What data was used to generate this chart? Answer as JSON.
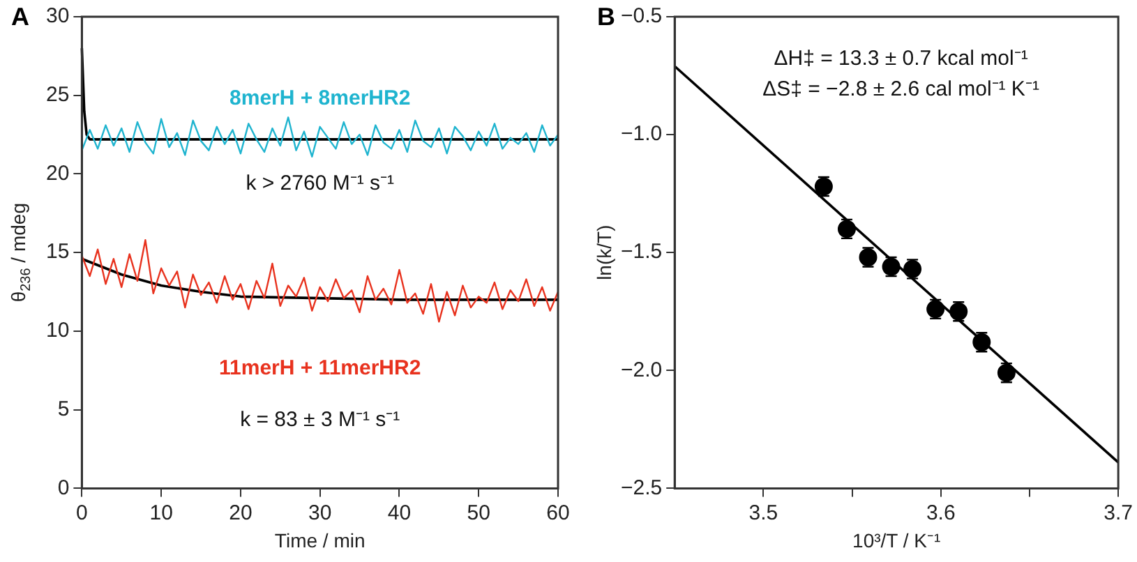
{
  "chart_data": [
    {
      "type": "line",
      "title": "A",
      "xlabel": "Time / min",
      "ylabel": "θ$_{236}$ / mdeg",
      "xlim": [
        0,
        60
      ],
      "xticks": [
        0,
        10,
        20,
        30,
        40,
        50,
        60
      ],
      "ylim": [
        0,
        30
      ],
      "yticks": [
        0,
        5,
        10,
        15,
        20,
        25,
        30
      ],
      "grid": false,
      "legend": false,
      "marker": "none",
      "annotations": [
        "k > 2760 M⁻¹ s⁻¹",
        "k = 83 ± 3 M⁻¹ s⁻¹"
      ],
      "series": [
        {
          "name": "8merH + 8merHR2",
          "color": "#1fb4cf",
          "x": [
            0,
            1,
            2,
            3,
            4,
            5,
            6,
            7,
            8,
            9,
            10,
            11,
            12,
            13,
            14,
            15,
            16,
            17,
            18,
            19,
            20,
            21,
            22,
            23,
            24,
            25,
            26,
            27,
            28,
            29,
            30,
            31,
            32,
            33,
            34,
            35,
            36,
            37,
            38,
            39,
            40,
            41,
            42,
            43,
            44,
            45,
            46,
            47,
            48,
            49,
            50,
            51,
            52,
            53,
            54,
            55,
            56,
            57,
            58,
            59,
            60
          ],
          "values": [
            21.5,
            22.8,
            21.6,
            23.1,
            21.8,
            22.9,
            21.4,
            23.3,
            22.0,
            21.3,
            23.5,
            21.7,
            22.6,
            21.2,
            23.4,
            22.1,
            21.5,
            23.0,
            21.9,
            22.8,
            21.3,
            23.2,
            22.2,
            21.4,
            22.9,
            21.8,
            23.6,
            21.5,
            22.7,
            21.1,
            23.0,
            22.3,
            21.6,
            23.3,
            21.9,
            22.5,
            21.2,
            23.1,
            22.0,
            21.6,
            22.8,
            21.4,
            23.4,
            22.1,
            21.7,
            22.9,
            21.3,
            23.0,
            22.4,
            21.5,
            22.7,
            21.8,
            23.2,
            21.6,
            22.3,
            21.9,
            22.6,
            21.4,
            23.1,
            21.8,
            22.5
          ]
        },
        {
          "type": "line",
          "color": "#000000",
          "x": [
            0,
            0.3,
            0.6,
            1,
            60
          ],
          "values": [
            28,
            24,
            22.5,
            22.2,
            22.2
          ]
        },
        {
          "name": "11merH + 11merHR2",
          "color": "#e8321e",
          "x": [
            0,
            1,
            2,
            3,
            4,
            5,
            6,
            7,
            8,
            9,
            10,
            11,
            12,
            13,
            14,
            15,
            16,
            17,
            18,
            19,
            20,
            21,
            22,
            23,
            24,
            25,
            26,
            27,
            28,
            29,
            30,
            31,
            32,
            33,
            34,
            35,
            36,
            37,
            38,
            39,
            40,
            41,
            42,
            43,
            44,
            45,
            46,
            47,
            48,
            49,
            50,
            51,
            52,
            53,
            54,
            55,
            56,
            57,
            58,
            59,
            60
          ],
          "values": [
            14.8,
            13.5,
            15.2,
            13.0,
            14.6,
            12.8,
            14.9,
            13.2,
            15.8,
            12.4,
            14.0,
            12.9,
            13.8,
            11.5,
            13.6,
            12.3,
            13.1,
            11.8,
            13.5,
            12.0,
            13.0,
            11.4,
            13.2,
            12.1,
            14.3,
            11.6,
            12.9,
            12.2,
            13.4,
            11.3,
            12.8,
            11.9,
            13.3,
            12.1,
            12.6,
            11.2,
            13.5,
            12.0,
            12.7,
            11.7,
            13.9,
            11.8,
            12.4,
            11.1,
            13.0,
            10.6,
            12.5,
            11.0,
            12.9,
            11.5,
            12.2,
            11.8,
            13.1,
            11.4,
            12.6,
            11.9,
            13.3,
            11.6,
            12.8,
            11.3,
            12.5
          ]
        },
        {
          "type": "line",
          "color": "#000000",
          "x": [
            0,
            5,
            10,
            15,
            20,
            30,
            40,
            50,
            60
          ],
          "values": [
            14.6,
            13.6,
            12.9,
            12.5,
            12.2,
            12.1,
            12.0,
            12.0,
            12.0
          ]
        }
      ]
    },
    {
      "type": "scatter",
      "title": "B",
      "xlabel": "10³/T / K⁻¹",
      "ylabel": "ln(k/T)",
      "xlim": [
        3.45,
        3.7
      ],
      "xticks": [
        3.5,
        {
          "value": 3.55,
          "label": null
        },
        3.6,
        {
          "value": 3.65,
          "label": null
        },
        3.7
      ],
      "ylim": [
        -2.5,
        -0.5
      ],
      "yticks": [
        {
          "value": -2.5,
          "label": "−2.5"
        },
        {
          "value": -2,
          "label": "−2.0"
        },
        {
          "value": -1.5,
          "label": "−1.5"
        },
        {
          "value": -1,
          "label": "−1.0"
        },
        {
          "value": -0.5,
          "label": "−0.5"
        }
      ],
      "grid": false,
      "legend": false,
      "annotations": [
        "ΔH‡ = 13.3 ± 0.7 kcal mol⁻¹",
        "ΔS‡ = −2.8 ± 2.6 cal mol⁻¹ K⁻¹"
      ],
      "series": [
        {
          "color": "#000000",
          "marker": "circle",
          "x": [
            3.534,
            3.547,
            3.559,
            3.572,
            3.584,
            3.597,
            3.61,
            3.623,
            3.637
          ],
          "values": [
            -1.22,
            -1.4,
            -1.52,
            -1.56,
            -1.57,
            -1.74,
            -1.75,
            -1.88,
            -2.01
          ],
          "errors": [
            0.04,
            0.04,
            0.04,
            0.04,
            0.04,
            0.04,
            0.04,
            0.04,
            0.04
          ]
        },
        {
          "type": "line",
          "color": "#000000",
          "marker": "none",
          "x": [
            3.45,
            3.7
          ],
          "values": [
            -0.71,
            -2.39
          ]
        }
      ]
    }
  ]
}
